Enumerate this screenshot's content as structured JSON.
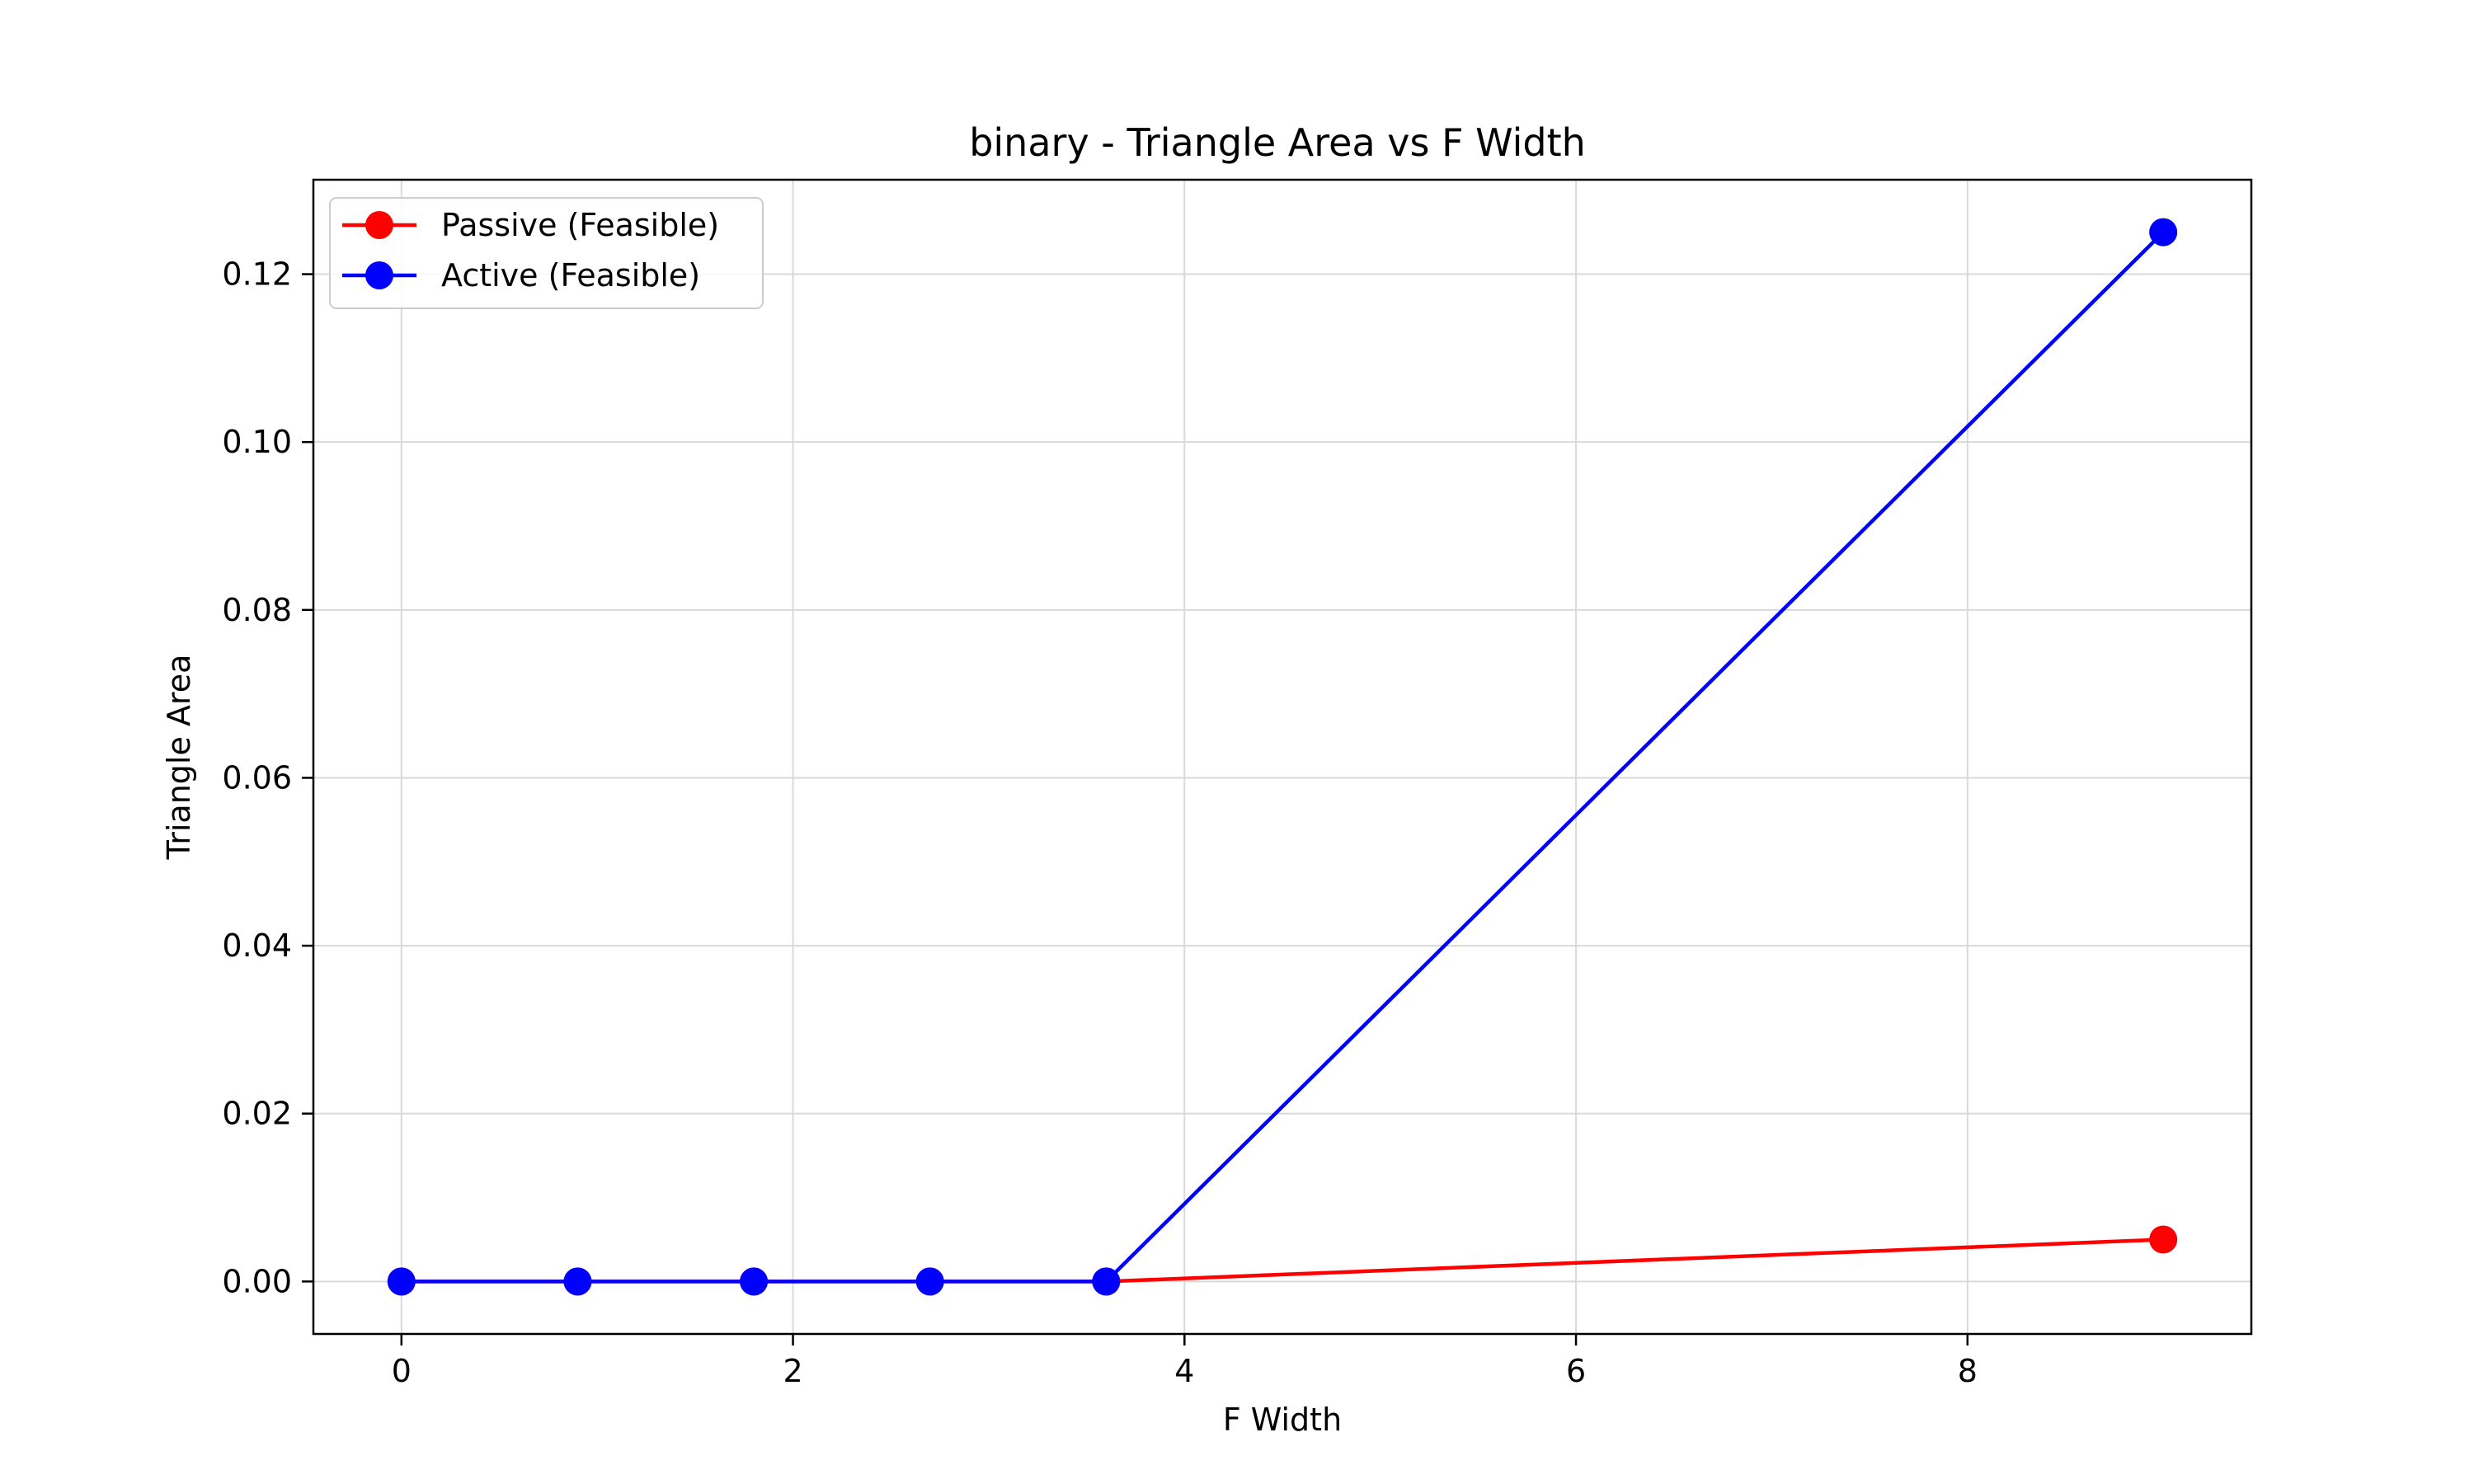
{
  "chart_data": {
    "type": "line",
    "title": "binary - Triangle Area vs F Width",
    "xlabel": "F Width",
    "ylabel": "Triangle Area",
    "xlim": [
      -0.45,
      9.45
    ],
    "ylim": [
      -0.00625,
      0.13125
    ],
    "xticks": [
      0,
      2,
      4,
      6,
      8
    ],
    "xtick_labels": [
      "0",
      "2",
      "4",
      "6",
      "8"
    ],
    "yticks": [
      0.0,
      0.02,
      0.04,
      0.06,
      0.08,
      0.1,
      0.12
    ],
    "ytick_labels": [
      "0.00",
      "0.02",
      "0.04",
      "0.06",
      "0.08",
      "0.10",
      "0.12"
    ],
    "grid": true,
    "legend_position": "top-left",
    "series": [
      {
        "name": "Passive (Feasible)",
        "color": "#ff0000",
        "x": [
          0.0,
          0.9,
          1.8,
          2.7,
          3.6,
          9.0
        ],
        "y": [
          0.0,
          0.0,
          0.0,
          0.0,
          0.0,
          0.005
        ]
      },
      {
        "name": "Active (Feasible)",
        "color": "#0000ff",
        "x": [
          0.0,
          0.9,
          1.8,
          2.7,
          3.6,
          9.0
        ],
        "y": [
          0.0,
          0.0,
          0.0,
          0.0,
          0.0,
          0.125
        ]
      }
    ]
  }
}
